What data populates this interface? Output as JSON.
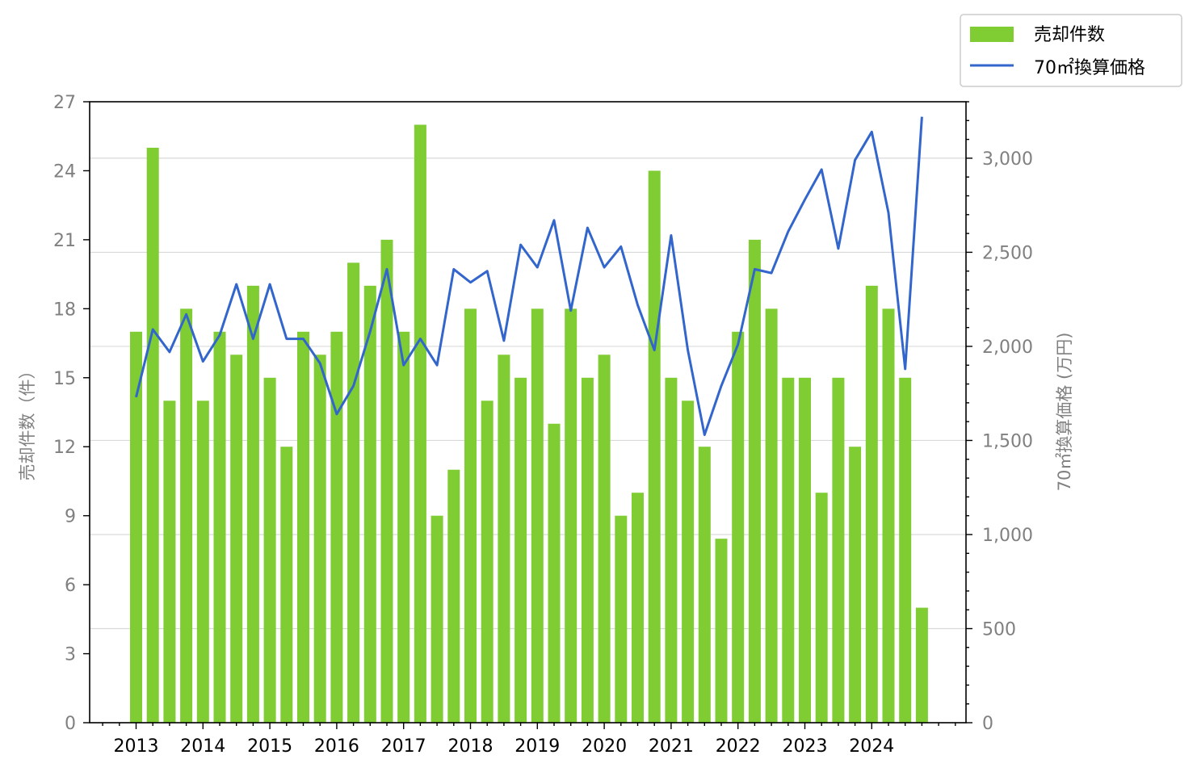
{
  "chart_data": {
    "type": "bar",
    "series": [
      {
        "name": "売却件数",
        "type": "bar",
        "axis": "left",
        "color": "#7fcc33",
        "values": [
          17,
          25,
          14,
          18,
          14,
          17,
          16,
          19,
          15,
          12,
          17,
          16,
          17,
          20,
          19,
          21,
          17,
          26,
          9,
          11,
          18,
          14,
          16,
          15,
          18,
          13,
          18,
          15,
          16,
          9,
          10,
          24,
          15,
          14,
          12,
          8,
          17,
          21,
          18,
          15,
          15,
          10,
          15,
          12,
          19,
          18,
          15,
          5
        ]
      },
      {
        "name": "70㎡換算価格",
        "type": "line",
        "axis": "right",
        "color": "#3366cc",
        "values": [
          1730,
          2090,
          1970,
          2170,
          1920,
          2060,
          2330,
          2040,
          2330,
          2040,
          2040,
          1910,
          1640,
          1790,
          2080,
          2410,
          1900,
          2040,
          1900,
          2410,
          2340,
          2400,
          2030,
          2540,
          2420,
          2670,
          2190,
          2630,
          2420,
          2530,
          2220,
          1980,
          2590,
          1980,
          1530,
          1790,
          2010,
          2410,
          2390,
          2610,
          2780,
          2940,
          2520,
          2990,
          3140,
          2710,
          1880,
          3220
        ]
      }
    ],
    "x_tick_labels": [
      "2013",
      "2014",
      "2015",
      "2016",
      "2017",
      "2018",
      "2019",
      "2020",
      "2021",
      "2022",
      "2023",
      "2024"
    ],
    "ylabel": "売却件数（件）",
    "y2label": "70㎡換算価格 (万円)",
    "ylim": [
      0,
      27
    ],
    "y2lim": [
      0,
      3300
    ],
    "yticks": [
      "0",
      "3",
      "6",
      "9",
      "12",
      "15",
      "18",
      "21",
      "24",
      "27"
    ],
    "y2ticks": [
      "0",
      "500",
      "1,000",
      "1,500",
      "2,000",
      "2,500",
      "3,000"
    ],
    "grid": "horizontal (right axis)",
    "legend_position": "top-right, outside plot"
  }
}
